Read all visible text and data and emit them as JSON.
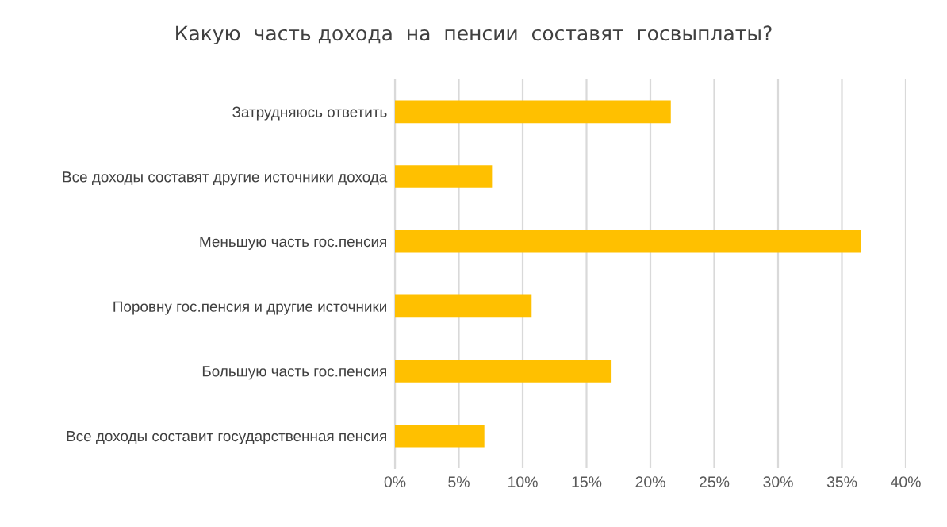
{
  "chart_data": {
    "type": "bar",
    "orientation": "horizontal",
    "title": "Какую  часть дохода  на  пенсии  составят  госвыплаты?",
    "categories": [
      "Затрудняюсь ответить",
      "Все доходы составят другие источники дохода",
      "Меньшую часть гос.пенсия",
      "Поровну гос.пенсия и другие источники",
      "Большую часть гос.пенсия",
      "Все доходы составит государственная пенсия"
    ],
    "values": [
      21.6,
      7.6,
      36.5,
      10.7,
      16.9,
      7.0
    ],
    "color": "#ffc000",
    "xlim": [
      0,
      40
    ],
    "xticks": [
      {
        "value": 0,
        "label": "0%"
      },
      {
        "value": 5,
        "label": "5%"
      },
      {
        "value": 10,
        "label": "10%"
      },
      {
        "value": 15,
        "label": "15%"
      },
      {
        "value": 20,
        "label": "20%"
      },
      {
        "value": 25,
        "label": "25%"
      },
      {
        "value": 30,
        "label": "30%"
      },
      {
        "value": 35,
        "label": "35%"
      },
      {
        "value": 40,
        "label": "40%"
      }
    ],
    "grid": "x",
    "legend": false
  }
}
